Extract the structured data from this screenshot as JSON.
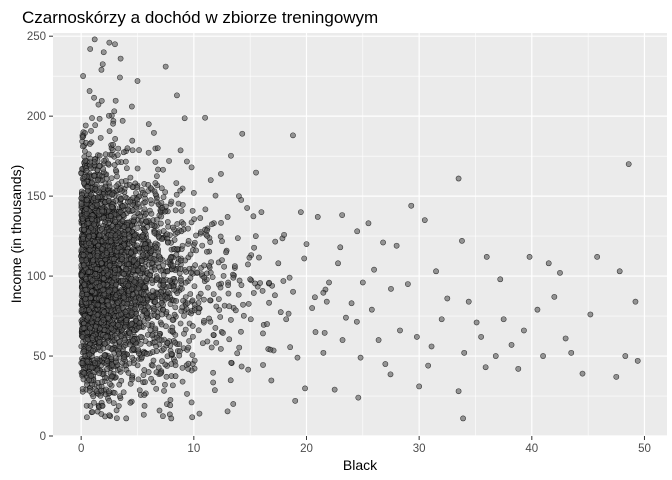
{
  "chart_data": {
    "type": "scatter",
    "title": "Czarnoskórzy a dochód w zbiorze treningowym",
    "xlabel": "Black",
    "ylabel": "Income (in thousands)",
    "xlim": [
      -2.5,
      52
    ],
    "ylim": [
      0,
      252
    ],
    "x_ticks": [
      0,
      10,
      20,
      30,
      40,
      50
    ],
    "y_ticks": [
      0,
      50,
      100,
      150,
      200,
      250
    ],
    "x_minor": [
      5,
      15,
      25,
      35,
      45
    ],
    "y_minor": [
      25,
      75,
      125,
      175,
      225
    ],
    "grid": true,
    "panel_color": "#ebebeb",
    "grid_color": "#ffffff",
    "point_fill": "#595959",
    "point_stroke": "#000000",
    "point_opacity": 0.6,
    "distribution": "dense cluster at low x (0–10) spanning y≈10–250, thinning toward x≈50 with y≈10–170",
    "points": [
      [
        48.6,
        170
      ],
      [
        33.5,
        161
      ],
      [
        29.3,
        144
      ],
      [
        14.3,
        189
      ],
      [
        18.8,
        188
      ],
      [
        11.0,
        199
      ],
      [
        7.5,
        231
      ],
      [
        2.5,
        246
      ],
      [
        1.2,
        248
      ],
      [
        3.0,
        245
      ],
      [
        8.5,
        213
      ],
      [
        39.8,
        112
      ],
      [
        41.5,
        108
      ],
      [
        42.5,
        102
      ],
      [
        45.8,
        112
      ],
      [
        47.8,
        103
      ],
      [
        49.2,
        84
      ],
      [
        48.3,
        50
      ],
      [
        49.4,
        47
      ],
      [
        47.5,
        37
      ],
      [
        44.5,
        39
      ],
      [
        43.0,
        61
      ],
      [
        41.0,
        50
      ],
      [
        38.2,
        57
      ],
      [
        36.8,
        50
      ],
      [
        35.9,
        43
      ],
      [
        33.9,
        11
      ],
      [
        33.5,
        28
      ],
      [
        30.0,
        31
      ],
      [
        24.6,
        24
      ],
      [
        22.5,
        29
      ],
      [
        19.0,
        22
      ],
      [
        13.5,
        20
      ],
      [
        10.5,
        14
      ],
      [
        8.0,
        11
      ],
      [
        4.0,
        11
      ],
      [
        2.5,
        13
      ],
      [
        1.0,
        15
      ],
      [
        36.0,
        112
      ],
      [
        33.8,
        122
      ],
      [
        30.5,
        135
      ],
      [
        28.0,
        119
      ],
      [
        26.8,
        121
      ],
      [
        25.5,
        133
      ],
      [
        24.5,
        128
      ],
      [
        23.0,
        118
      ],
      [
        21.0,
        137
      ],
      [
        20.0,
        120
      ],
      [
        19.5,
        140
      ],
      [
        45.2,
        76
      ],
      [
        40.5,
        79
      ],
      [
        39.3,
        66
      ],
      [
        37.5,
        73
      ],
      [
        35.1,
        71
      ],
      [
        34.4,
        84
      ],
      [
        32.5,
        86
      ],
      [
        31.1,
        56
      ],
      [
        29.8,
        62
      ],
      [
        28.3,
        66
      ],
      [
        27.5,
        92
      ],
      [
        26.0,
        104
      ],
      [
        25.0,
        96
      ],
      [
        24.0,
        83
      ],
      [
        23.5,
        74
      ],
      [
        22.0,
        96
      ],
      [
        21.5,
        52
      ],
      [
        20.5,
        80
      ],
      [
        18.5,
        99
      ],
      [
        17.5,
        108
      ],
      [
        16.5,
        70
      ],
      [
        15.5,
        125
      ],
      [
        15.0,
        98
      ],
      [
        14.0,
        150
      ],
      [
        13.0,
        137
      ],
      [
        12.5,
        110
      ],
      [
        12.0,
        81
      ],
      [
        11.5,
        160
      ],
      [
        10.8,
        58
      ],
      [
        10.0,
        152
      ],
      [
        9.5,
        42
      ],
      [
        9.0,
        119
      ],
      [
        43.5,
        52
      ],
      [
        42.0,
        87
      ],
      [
        38.8,
        42
      ],
      [
        37.2,
        98
      ],
      [
        35.5,
        62
      ],
      [
        34.0,
        52
      ],
      [
        32.0,
        73
      ],
      [
        31.5,
        103
      ],
      [
        30.8,
        44
      ],
      [
        29.0,
        95
      ],
      [
        27.0,
        45
      ],
      [
        26.4,
        60
      ],
      [
        25.8,
        79
      ],
      [
        24.8,
        49
      ],
      [
        23.2,
        60
      ],
      [
        22.8,
        108
      ],
      [
        21.8,
        84
      ],
      [
        20.8,
        65
      ],
      [
        19.8,
        111
      ],
      [
        19.2,
        49
      ],
      [
        18.2,
        73
      ],
      [
        17.2,
        88
      ],
      [
        16.8,
        54
      ],
      [
        16.0,
        140
      ],
      [
        5.0,
        222
      ],
      [
        6.0,
        195
      ],
      [
        4.5,
        206
      ],
      [
        3.5,
        236
      ],
      [
        2.0,
        240
      ],
      [
        0.8,
        242
      ],
      [
        1.8,
        229
      ],
      [
        6.8,
        180
      ],
      [
        7.8,
        172
      ],
      [
        9.8,
        168
      ]
    ]
  }
}
